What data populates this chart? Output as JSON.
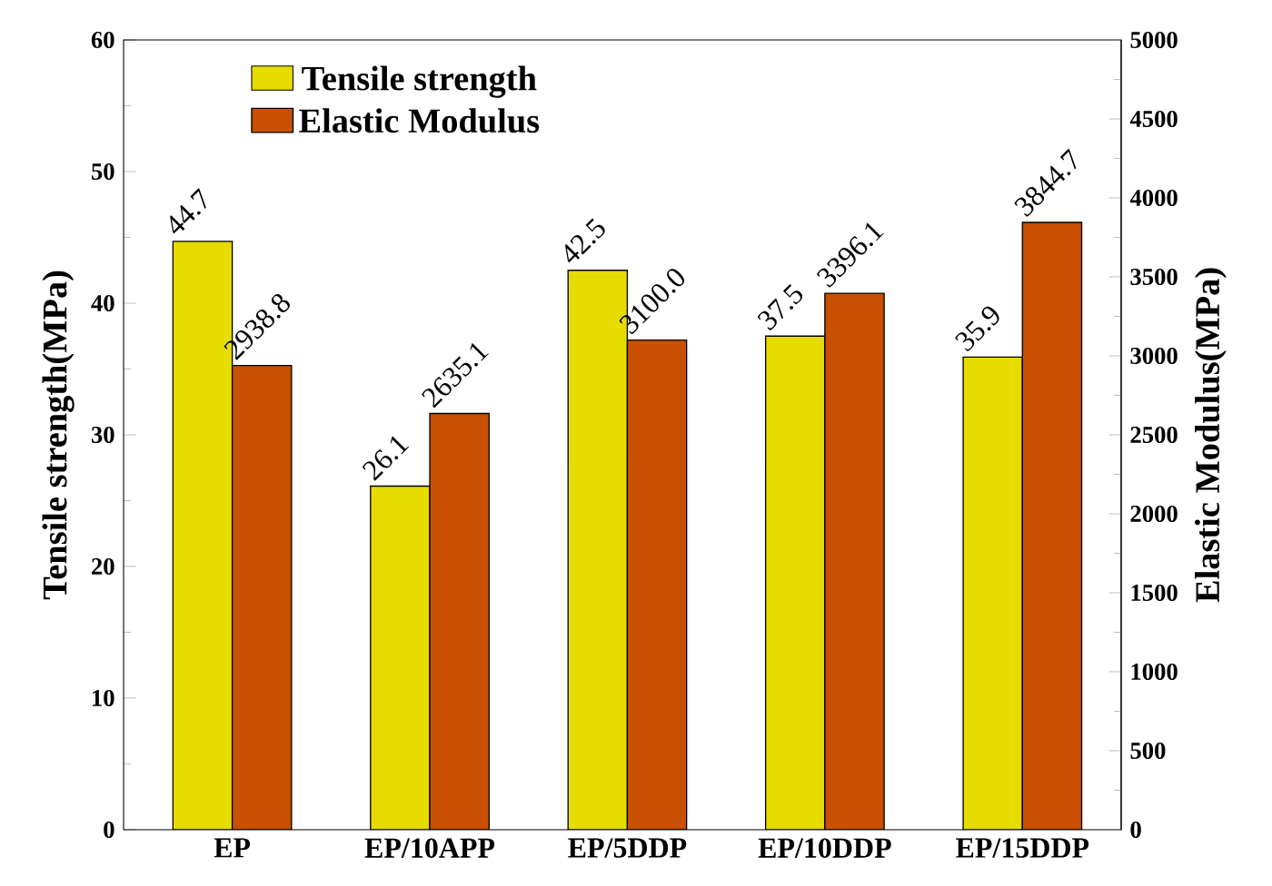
{
  "chart_data": {
    "type": "bar",
    "categories": [
      "EP",
      "EP/10APP",
      "EP/5DDP",
      "EP/10DDP",
      "EP/15DDP"
    ],
    "series": [
      {
        "name": "Tensile strength",
        "color": "#e6dc00",
        "values": [
          44.7,
          26.1,
          42.5,
          37.5,
          35.9
        ],
        "value_labels": [
          "44.7",
          "26.1",
          "42.5",
          "37.5",
          "35.9"
        ]
      },
      {
        "name": "Elastic Modulus",
        "color": "#c85000",
        "axis": "y2",
        "values": [
          2938.8,
          2635.1,
          3100.0,
          3396.1,
          3844.7
        ],
        "value_labels": [
          "2938.8",
          "2635.1",
          "3100.0",
          "3396.1",
          "3844.7"
        ]
      }
    ],
    "ylabel": "Tensile strength(MPa)",
    "y2label": "Elastic Modulus(MPa)",
    "ylim": [
      0,
      60
    ],
    "yticks": [
      0,
      10,
      20,
      30,
      40,
      50,
      60
    ],
    "y2lim": [
      0,
      5000
    ],
    "y2ticks": [
      0,
      500,
      1000,
      1500,
      2000,
      2500,
      3000,
      3500,
      4000,
      4500,
      5000
    ],
    "legend": "top left"
  }
}
